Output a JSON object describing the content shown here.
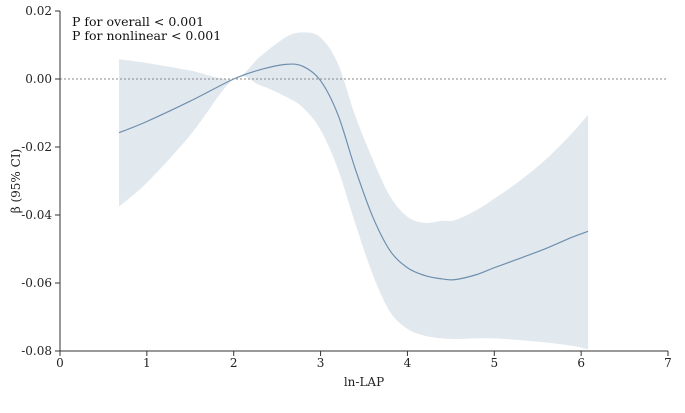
{
  "chart_data": {
    "type": "line",
    "xlabel": "ln-LAP",
    "ylabel": "β (95% CI)",
    "xlim": [
      0,
      7
    ],
    "ylim": [
      -0.08,
      0.02
    ],
    "x_ticks": [
      0,
      1,
      2,
      3,
      4,
      5,
      6,
      7
    ],
    "y_ticks": [
      0.02,
      0.0,
      -0.02,
      -0.04,
      -0.06,
      -0.08
    ],
    "x_tick_labels": [
      "0",
      "1",
      "2",
      "3",
      "4",
      "5",
      "6",
      "7"
    ],
    "y_tick_labels": [
      "0.02",
      "0.00",
      "-0.02",
      "-0.04",
      "-0.06",
      "-0.08"
    ],
    "reference_line_y": 0,
    "annotations": [
      "P for overall < 0.001",
      "P for nonlinear < 0.001"
    ],
    "grid": false,
    "colors": {
      "line": "#6f8fae",
      "band": "#e1e9ef",
      "reference": "#888888",
      "axis": "#333333"
    },
    "series": [
      {
        "x": [
          0.68,
          1.0,
          1.5,
          2.0,
          2.3,
          2.6,
          2.8,
          3.0,
          3.2,
          3.4,
          3.6,
          3.8,
          4.0,
          4.2,
          4.4,
          4.55,
          4.8,
          5.0,
          5.3,
          5.6,
          5.9,
          6.08
        ],
        "y": [
          -0.0158,
          -0.0125,
          -0.0065,
          0.0,
          0.0027,
          0.0043,
          0.0037,
          -0.0005,
          -0.0105,
          -0.0265,
          -0.0405,
          -0.0505,
          -0.0555,
          -0.0578,
          -0.0588,
          -0.059,
          -0.0575,
          -0.0555,
          -0.0527,
          -0.0498,
          -0.0465,
          -0.0448
        ],
        "ci_lower": [
          -0.0375,
          -0.0305,
          -0.0165,
          0.0,
          -0.0018,
          -0.0052,
          -0.0085,
          -0.015,
          -0.0265,
          -0.0425,
          -0.0575,
          -0.0685,
          -0.0735,
          -0.0755,
          -0.0763,
          -0.0765,
          -0.0763,
          -0.0763,
          -0.0768,
          -0.0775,
          -0.0785,
          -0.0795
        ],
        "ci_upper": [
          0.0058,
          0.0047,
          0.0025,
          0.0,
          0.0065,
          0.0123,
          0.0137,
          0.0122,
          0.0045,
          -0.0108,
          -0.0236,
          -0.0345,
          -0.0405,
          -0.0423,
          -0.0417,
          -0.0415,
          -0.0385,
          -0.0352,
          -0.0298,
          -0.0235,
          -0.0158,
          -0.0105
        ]
      }
    ]
  }
}
